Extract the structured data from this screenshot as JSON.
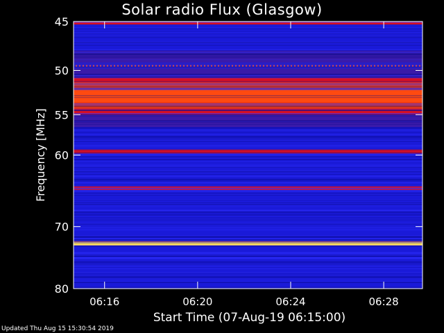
{
  "chart_data": {
    "type": "heatmap",
    "title": "Solar radio Flux (Glasgow)",
    "xlabel": "Start Time (07-Aug-19 06:15:00)",
    "ylabel": "Frequency [MHz]",
    "ylim": [
      45,
      80
    ],
    "xlim": [
      "06:14:40",
      "06:29:40"
    ],
    "x_ticks": [
      "06:16",
      "06:20",
      "06:24",
      "06:28"
    ],
    "y_ticks": [
      "45",
      "50",
      "55",
      "60",
      "70",
      "80"
    ],
    "y_scale": "log",
    "colormap": "blue-red-yellow",
    "bands": [
      {
        "from": 45.0,
        "to": 45.3,
        "level": "red"
      },
      {
        "from": 45.3,
        "to": 47.9,
        "level": "blue"
      },
      {
        "from": 47.9,
        "to": 49.2,
        "level": "purple"
      },
      {
        "from": 49.2,
        "to": 49.8,
        "level": "red-dotted"
      },
      {
        "from": 49.8,
        "to": 50.8,
        "level": "purple"
      },
      {
        "from": 50.8,
        "to": 51.3,
        "level": "red"
      },
      {
        "from": 51.3,
        "to": 54.3,
        "level": "orange-red"
      },
      {
        "from": 54.3,
        "to": 55.0,
        "level": "red"
      },
      {
        "from": 55.0,
        "to": 56.5,
        "level": "purple"
      },
      {
        "from": 56.5,
        "to": 59.3,
        "level": "blue"
      },
      {
        "from": 59.3,
        "to": 59.8,
        "level": "red"
      },
      {
        "from": 59.8,
        "to": 64.2,
        "level": "blue"
      },
      {
        "from": 64.2,
        "to": 64.7,
        "level": "red"
      },
      {
        "from": 64.7,
        "to": 72.4,
        "level": "blue"
      },
      {
        "from": 72.4,
        "to": 72.9,
        "level": "yellow"
      },
      {
        "from": 72.9,
        "to": 80.0,
        "level": "blue"
      }
    ]
  },
  "footer": {
    "updated": "Updated Thu Aug 15 15:30:54 2019"
  },
  "colors": {
    "background": "#000000",
    "text": "#ffffff",
    "blue": "#1a1ad8",
    "red": "#e0101a",
    "yellow": "#ffe060"
  }
}
